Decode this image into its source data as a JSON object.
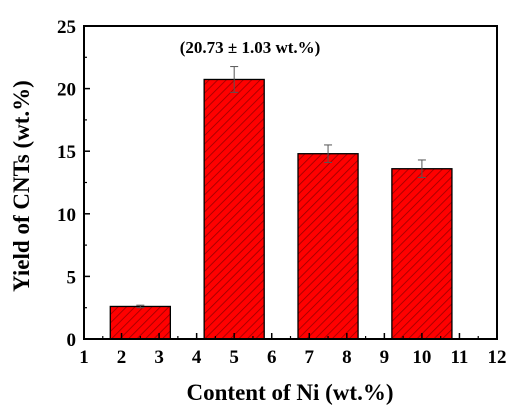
{
  "chart_data": {
    "type": "bar",
    "xlabel": "Content of Ni (wt.%)",
    "ylabel": "Yield of CNTs (wt.%)",
    "xlim": [
      1,
      12
    ],
    "ylim": [
      0,
      25
    ],
    "x_ticks": [
      1,
      2,
      3,
      4,
      5,
      6,
      7,
      8,
      9,
      10,
      11,
      12
    ],
    "y_ticks": [
      0,
      5,
      10,
      15,
      20,
      25
    ],
    "bar_width": 1.6,
    "bars": [
      {
        "x": 2.5,
        "value": 2.6,
        "error": 0.1
      },
      {
        "x": 5.0,
        "value": 20.73,
        "error": 1.03
      },
      {
        "x": 7.5,
        "value": 14.8,
        "error": 0.7
      },
      {
        "x": 10.0,
        "value": 13.6,
        "error": 0.7
      }
    ],
    "annotation": "(20.73 ±  1.03 wt.%)",
    "bar_color": "#ff0000",
    "hatch_color": "#990000",
    "grid": false,
    "legend": "none"
  }
}
